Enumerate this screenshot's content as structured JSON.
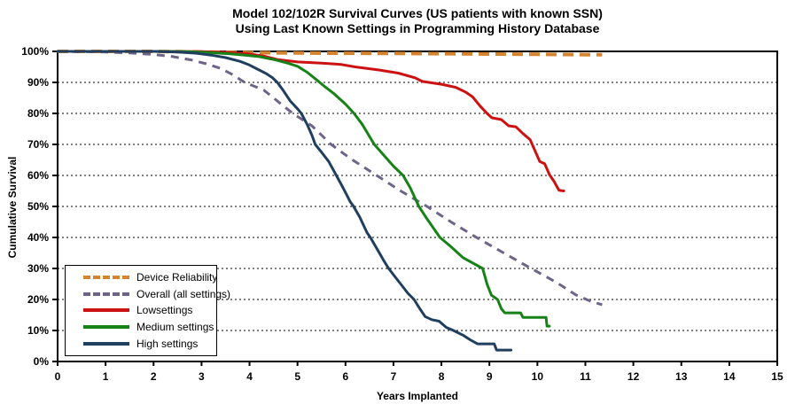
{
  "chart_data": {
    "type": "line",
    "title": "Model 102/102R Survival Curves (US patients with known SSN)",
    "subtitle": "Using Last Known Settings in Programming History Database",
    "xlabel": "Years Implanted",
    "ylabel": "Cumulative Survival",
    "xlim": [
      0,
      15
    ],
    "ylim": [
      0,
      100
    ],
    "x_ticks": [
      0,
      1,
      2,
      3,
      4,
      5,
      6,
      7,
      8,
      9,
      10,
      11,
      12,
      13,
      14,
      15
    ],
    "y_ticks": [
      "0%",
      "10%",
      "20%",
      "30%",
      "40%",
      "50%",
      "60%",
      "70%",
      "80%",
      "90%",
      "100%"
    ],
    "grid": "horizontal dotted lines at each 10%",
    "legend_position": "lower-left",
    "series": [
      {
        "name": "Device Reliability",
        "color": "#D4842F",
        "style": "dashed",
        "width": 4,
        "dasharray": "12 7",
        "points": [
          [
            0,
            100
          ],
          [
            1,
            100
          ],
          [
            2,
            100
          ],
          [
            2.5,
            99.9
          ],
          [
            3,
            99.8
          ],
          [
            4,
            99.6
          ],
          [
            5,
            99.5
          ],
          [
            6,
            99.4
          ],
          [
            7,
            99.35
          ],
          [
            8,
            99.25
          ],
          [
            9,
            99.15
          ],
          [
            10,
            99.05
          ],
          [
            10.5,
            99
          ],
          [
            11,
            98.95
          ],
          [
            11.35,
            98.9
          ]
        ]
      },
      {
        "name": "Overall (all settings)",
        "color": "#6E6488",
        "style": "dashed",
        "width": 3,
        "dasharray": "9 7",
        "points": [
          [
            0,
            100
          ],
          [
            1,
            99.8
          ],
          [
            1.5,
            99.5
          ],
          [
            2,
            99
          ],
          [
            2.4,
            98.3
          ],
          [
            2.8,
            97.2
          ],
          [
            3.1,
            96
          ],
          [
            3.4,
            94.5
          ],
          [
            3.65,
            92.5
          ],
          [
            3.9,
            90
          ],
          [
            4.3,
            87.5
          ],
          [
            4.9,
            80
          ],
          [
            5.3,
            76
          ],
          [
            5.7,
            70
          ],
          [
            6.1,
            65.5
          ],
          [
            6.65,
            60
          ],
          [
            7.15,
            55
          ],
          [
            7.7,
            50
          ],
          [
            8.2,
            45
          ],
          [
            8.73,
            40
          ],
          [
            9.3,
            35
          ],
          [
            9.87,
            30
          ],
          [
            10.4,
            25.5
          ],
          [
            10.8,
            21.5
          ],
          [
            11.1,
            19.5
          ],
          [
            11.35,
            18.3
          ]
        ]
      },
      {
        "name": "Lowsettings",
        "color": "#CC1111",
        "style": "solid",
        "width": 3,
        "dasharray": "",
        "points": [
          [
            0,
            100
          ],
          [
            1,
            100
          ],
          [
            2,
            100
          ],
          [
            3,
            99.9
          ],
          [
            3.5,
            99.7
          ],
          [
            4,
            99.2
          ],
          [
            4.3,
            98.5
          ],
          [
            4.6,
            97.3
          ],
          [
            5,
            96.6
          ],
          [
            5.5,
            96.2
          ],
          [
            5.9,
            95.8
          ],
          [
            6.2,
            95
          ],
          [
            6.7,
            94
          ],
          [
            7.1,
            93
          ],
          [
            7.45,
            91.5
          ],
          [
            7.6,
            90.3
          ],
          [
            8,
            89.4
          ],
          [
            8.3,
            88.4
          ],
          [
            8.5,
            86.9
          ],
          [
            8.65,
            85.3
          ],
          [
            8.8,
            82.5
          ],
          [
            8.95,
            80
          ],
          [
            9.05,
            78.6
          ],
          [
            9.25,
            78
          ],
          [
            9.4,
            76
          ],
          [
            9.55,
            75.7
          ],
          [
            9.7,
            73.5
          ],
          [
            9.85,
            71.5
          ],
          [
            9.95,
            68
          ],
          [
            10.05,
            64.5
          ],
          [
            10.15,
            63.8
          ],
          [
            10.25,
            60.3
          ],
          [
            10.35,
            58
          ],
          [
            10.45,
            55.2
          ],
          [
            10.55,
            55
          ]
        ]
      },
      {
        "name": "Medium settings",
        "color": "#178217",
        "style": "solid",
        "width": 3,
        "dasharray": "",
        "points": [
          [
            0,
            100
          ],
          [
            2,
            100
          ],
          [
            2.7,
            99.9
          ],
          [
            3.2,
            99.6
          ],
          [
            3.6,
            99.2
          ],
          [
            3.9,
            98.8
          ],
          [
            4.2,
            98.3
          ],
          [
            4.5,
            97.4
          ],
          [
            4.8,
            96.2
          ],
          [
            5,
            95.2
          ],
          [
            5.2,
            93.3
          ],
          [
            5.4,
            90.8
          ],
          [
            5.55,
            88.9
          ],
          [
            5.75,
            86.5
          ],
          [
            6,
            83
          ],
          [
            6.18,
            80
          ],
          [
            6.35,
            76.5
          ],
          [
            6.6,
            70
          ],
          [
            6.8,
            66.5
          ],
          [
            7,
            63
          ],
          [
            7.2,
            60
          ],
          [
            7.35,
            56
          ],
          [
            7.53,
            50
          ],
          [
            7.7,
            46
          ],
          [
            7.97,
            40
          ],
          [
            8.2,
            37
          ],
          [
            8.45,
            33.5
          ],
          [
            8.86,
            30
          ],
          [
            8.95,
            25
          ],
          [
            9.04,
            21.4
          ],
          [
            9.17,
            20
          ],
          [
            9.25,
            17
          ],
          [
            9.32,
            15.7
          ],
          [
            9.65,
            15.7
          ],
          [
            9.7,
            14.2
          ],
          [
            10.18,
            14.2
          ],
          [
            10.2,
            11.4
          ],
          [
            10.25,
            11.4
          ]
        ]
      },
      {
        "name": "High settings",
        "color": "#203F5F",
        "style": "solid",
        "width": 3,
        "dasharray": "",
        "points": [
          [
            0,
            100
          ],
          [
            2,
            100
          ],
          [
            2.5,
            99.8
          ],
          [
            2.9,
            99.4
          ],
          [
            3.2,
            98.8
          ],
          [
            3.5,
            98
          ],
          [
            3.8,
            96.8
          ],
          [
            4,
            95.6
          ],
          [
            4.2,
            94
          ],
          [
            4.34,
            92.9
          ],
          [
            4.48,
            91.5
          ],
          [
            4.58,
            90
          ],
          [
            4.7,
            87.5
          ],
          [
            4.85,
            84
          ],
          [
            5,
            81.5
          ],
          [
            5.08,
            80
          ],
          [
            5.2,
            76.5
          ],
          [
            5.3,
            73
          ],
          [
            5.37,
            70
          ],
          [
            5.5,
            67.5
          ],
          [
            5.65,
            64.5
          ],
          [
            5.81,
            60
          ],
          [
            5.95,
            56
          ],
          [
            6.1,
            51.5
          ],
          [
            6.17,
            50
          ],
          [
            6.3,
            46.5
          ],
          [
            6.45,
            41.5
          ],
          [
            6.52,
            40
          ],
          [
            6.65,
            36.5
          ],
          [
            6.8,
            32.5
          ],
          [
            6.9,
            30
          ],
          [
            7.05,
            27
          ],
          [
            7.2,
            24
          ],
          [
            7.3,
            22
          ],
          [
            7.43,
            20
          ],
          [
            7.55,
            17
          ],
          [
            7.66,
            14.5
          ],
          [
            7.8,
            13.5
          ],
          [
            7.95,
            13
          ],
          [
            8.1,
            11
          ],
          [
            8.25,
            10
          ],
          [
            8.45,
            8.5
          ],
          [
            8.6,
            7
          ],
          [
            8.75,
            5.7
          ],
          [
            9.1,
            5.7
          ],
          [
            9.15,
            3.7
          ],
          [
            9.45,
            3.7
          ]
        ]
      }
    ]
  }
}
